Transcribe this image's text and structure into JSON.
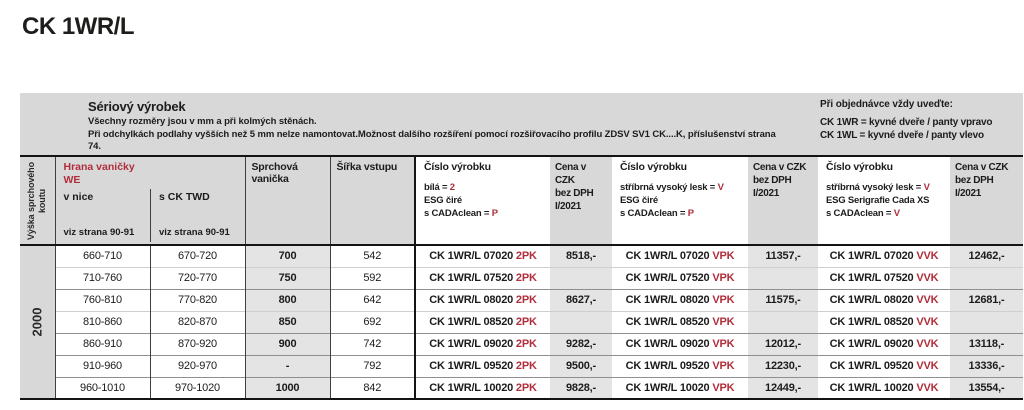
{
  "colors": {
    "accent_red": "#b02e3c",
    "panel_gray": "#d8d8d8",
    "cell_gray": "#e4e4e4"
  },
  "page": {
    "title": "CK 1WR/L"
  },
  "info_box": {
    "product_note": {
      "title": "Sériový výrobek",
      "line1": "Všechny rozměry jsou v mm a při kolmých stěnách.",
      "line2": "Při odchylkách podlahy vyšších než 5 mm nelze namontovat.Možnost dalšího rozšíření pomocí rozšiřovacího profilu ZDSV SV1 CK....K, příslušenství strana 74."
    },
    "order_note": {
      "title": "Při objednávce vždy uveďte:",
      "line1": "CK 1WR = kyvné dveře / panty vpravo",
      "line2": "CK 1WL = kyvné dveře / panty vlevo"
    }
  },
  "table": {
    "height_col_label": "Výška sprchového koutu",
    "height_value": "2000",
    "hrana": {
      "title": "Hrana vaničky",
      "subtitle": "WE",
      "sub1": "v nice",
      "sub2": "s CK TWD",
      "note": "viz strana 90-91"
    },
    "vanicka_label": "Sprchová vanička",
    "sirka_label": "Šířka vstupu",
    "price_header": {
      "l1": "Cena v CZK",
      "l2": "bez DPH",
      "l3": "I/2021"
    },
    "product_cols": [
      {
        "title": "Číslo výrobku",
        "suffix": "2PK",
        "specs": [
          [
            "bílá = ",
            "2"
          ],
          [
            "ESG čiré",
            ""
          ],
          [
            "s CADAclean = ",
            "P"
          ]
        ]
      },
      {
        "title": "Číslo výrobku",
        "suffix": "VPK",
        "specs": [
          [
            "stříbrná vysoký lesk = ",
            "V"
          ],
          [
            "ESG čiré",
            ""
          ],
          [
            "s CADAclean = ",
            "P"
          ]
        ]
      },
      {
        "title": "Číslo výrobku",
        "suffix": "VVK",
        "specs": [
          [
            "stříbrná vysoký lesk = ",
            "V"
          ],
          [
            "ESG Serigrafie Cada XS",
            ""
          ],
          [
            "s CADAclean = ",
            "V"
          ]
        ]
      }
    ],
    "rows": [
      {
        "nice": "660-710",
        "twd": "670-720",
        "tray": "700",
        "width": "542",
        "code": "CK 1WR/L 07020",
        "prices": [
          "8518,-",
          "11357,-",
          "12462,-"
        ],
        "continuation": false
      },
      {
        "nice": "710-760",
        "twd": "720-770",
        "tray": "750",
        "width": "592",
        "code": "CK 1WR/L 07520",
        "prices": [
          "",
          "",
          ""
        ],
        "continuation": true
      },
      {
        "nice": "760-810",
        "twd": "770-820",
        "tray": "800",
        "width": "642",
        "code": "CK 1WR/L 08020",
        "prices": [
          "8627,-",
          "11575,-",
          "12681,-"
        ],
        "continuation": false
      },
      {
        "nice": "810-860",
        "twd": "820-870",
        "tray": "850",
        "width": "692",
        "code": "CK 1WR/L 08520",
        "prices": [
          "",
          "",
          ""
        ],
        "continuation": true
      },
      {
        "nice": "860-910",
        "twd": "870-920",
        "tray": "900",
        "width": "742",
        "code": "CK 1WR/L 09020",
        "prices": [
          "9282,-",
          "12012,-",
          "13118,-"
        ],
        "continuation": false
      },
      {
        "nice": "910-960",
        "twd": "920-970",
        "tray": "-",
        "width": "792",
        "code": "CK 1WR/L 09520",
        "prices": [
          "9500,-",
          "12230,-",
          "13336,-"
        ],
        "continuation": false
      },
      {
        "nice": "960-1010",
        "twd": "970-1020",
        "tray": "1000",
        "width": "842",
        "code": "CK 1WR/L 10020",
        "prices": [
          "9828,-",
          "12449,-",
          "13554,-"
        ],
        "continuation": false
      }
    ]
  }
}
